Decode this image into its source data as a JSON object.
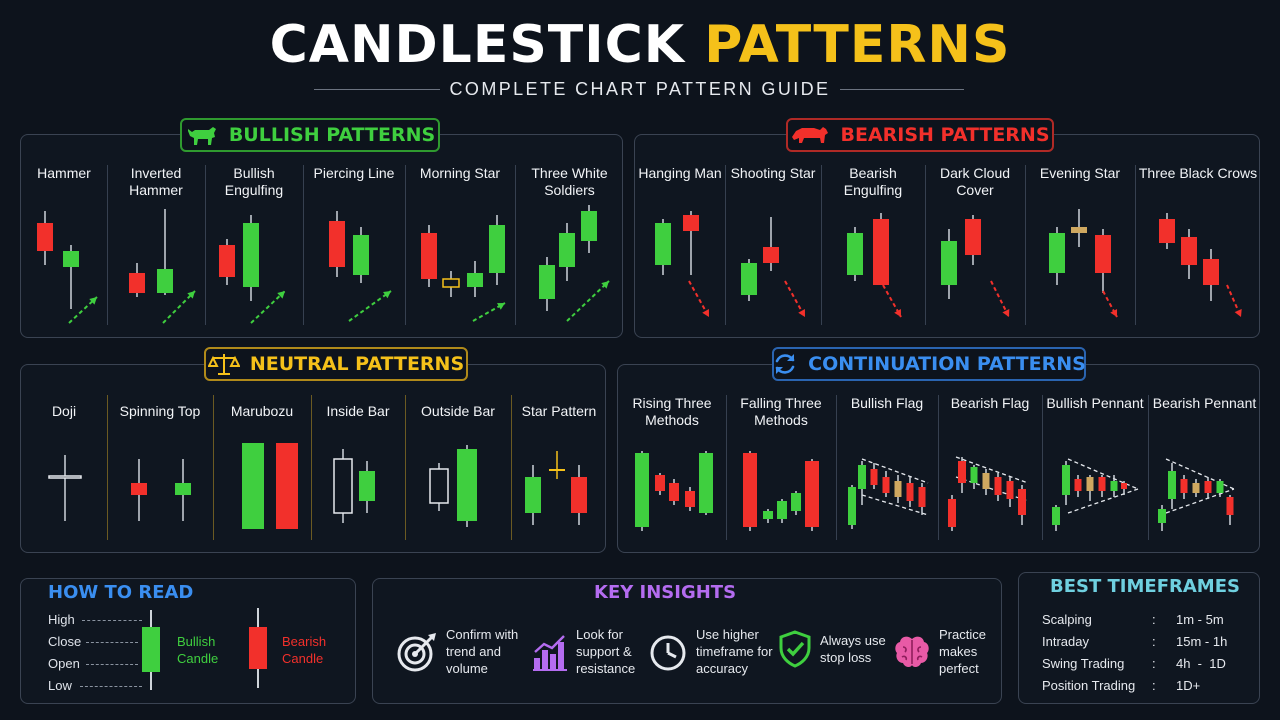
{
  "header": {
    "title_white": "CANDLESTICK",
    "title_yellow": "PATTERNS",
    "subtitle": "COMPLETE CHART PATTERN GUIDE"
  },
  "colors": {
    "bull": "#3fcf3f",
    "bear": "#f2302b",
    "arrow_bull": "#3fcf3f",
    "arrow_bear": "#f2302b",
    "neutral_gold": "#f5c11a",
    "continuation_blue": "#3a8ef0",
    "insight_purple": "#b46cf0",
    "timeframe_teal": "#6fd0e0"
  },
  "bullish": {
    "title": "BULLISH PATTERNS",
    "icon": "bull-icon",
    "patterns": [
      {
        "label": "Hammer"
      },
      {
        "label": "Inverted Hammer"
      },
      {
        "label": "Bullish Engulfing"
      },
      {
        "label": "Piercing Line"
      },
      {
        "label": "Morning Star"
      },
      {
        "label": "Three White Soldiers"
      }
    ]
  },
  "bearish": {
    "title": "BEARISH PATTERNS",
    "icon": "bear-icon",
    "patterns": [
      {
        "label": "Hanging Man"
      },
      {
        "label": "Shooting Star"
      },
      {
        "label": "Bearish Engulfing"
      },
      {
        "label": "Dark Cloud Cover"
      },
      {
        "label": "Evening Star"
      },
      {
        "label": "Three Black Crows"
      }
    ]
  },
  "neutral": {
    "title": "NEUTRAL PATTERNS",
    "icon": "scales-icon",
    "patterns": [
      {
        "label": "Doji"
      },
      {
        "label": "Spinning Top"
      },
      {
        "label": "Marubozu"
      },
      {
        "label": "Inside Bar"
      },
      {
        "label": "Outside Bar"
      },
      {
        "label": "Star Pattern"
      }
    ]
  },
  "continuation": {
    "title": "CONTINUATION PATTERNS",
    "icon": "refresh-icon",
    "patterns": [
      {
        "label": "Rising Three Methods"
      },
      {
        "label": "Falling Three Methods"
      },
      {
        "label": "Bullish Flag"
      },
      {
        "label": "Bearish Flag"
      },
      {
        "label": "Bullish Pennant"
      },
      {
        "label": "Bearish Pennant"
      }
    ]
  },
  "how_to_read": {
    "title": "HOW TO READ",
    "labels": [
      "High",
      "Close",
      "Open",
      "Low"
    ],
    "bullish_label": "Bullish Candle",
    "bearish_label": "Bearish Candle"
  },
  "key_insights": {
    "title": "KEY INSIGHTS",
    "items": [
      {
        "icon": "target-icon",
        "text": "Confirm with trend and volume"
      },
      {
        "icon": "bar-chart-icon",
        "text": "Look for support & resistance"
      },
      {
        "icon": "clock-icon",
        "text": "Use higher timeframe for accuracy"
      },
      {
        "icon": "shield-icon",
        "text": "Always use stop loss"
      },
      {
        "icon": "brain-icon",
        "text": "Practice makes perfect"
      }
    ]
  },
  "timeframes": {
    "title": "BEST TIMEFRAMES",
    "rows": [
      {
        "name": "Scalping",
        "value": "1m - 5m"
      },
      {
        "name": "Intraday",
        "value": "15m - 1h"
      },
      {
        "name": "Swing Trading",
        "value": "4h  -  1D"
      },
      {
        "name": "Position Trading",
        "value": "1D+"
      }
    ]
  }
}
